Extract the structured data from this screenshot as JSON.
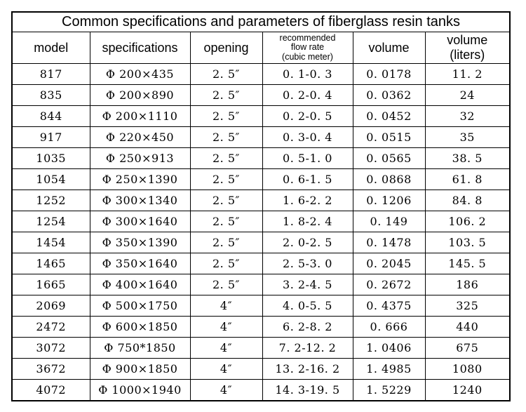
{
  "page": {
    "background_color": "#ffffff",
    "border_color": "#000000",
    "text_color": "#000000"
  },
  "table": {
    "title": "Common specifications and parameters of fiberglass resin tanks",
    "headers": [
      "model",
      "specifications",
      "opening",
      "recommended\nflow rate\n(cubic meter)",
      "volume",
      "volume\n(liters)"
    ],
    "rows": [
      [
        "817",
        "Φ 200×435",
        "2. 5″",
        "0. 1-0. 3",
        "0. 0178",
        "11. 2"
      ],
      [
        "835",
        "Φ 200×890",
        "2. 5″",
        "0. 2-0. 4",
        "0. 0362",
        "24"
      ],
      [
        "844",
        "Φ 200×1110",
        "2. 5″",
        "0. 2-0. 5",
        "0. 0452",
        "32"
      ],
      [
        "917",
        "Φ 220×450",
        "2. 5″",
        "0. 3-0. 4",
        "0. 0515",
        "35"
      ],
      [
        "1035",
        "Φ 250×913",
        "2. 5″",
        "0. 5-1. 0",
        "0. 0565",
        "38. 5"
      ],
      [
        "1054",
        "Φ 250×1390",
        "2. 5″",
        "0. 6-1. 5",
        "0. 0868",
        "61. 8"
      ],
      [
        "1252",
        "Φ 300×1340",
        "2. 5″",
        "1. 6-2. 2",
        "0. 1206",
        "84. 8"
      ],
      [
        "1254",
        "Φ 300×1640",
        "2. 5″",
        "1. 8-2. 4",
        "0. 149",
        "106. 2"
      ],
      [
        "1454",
        "Φ 350×1390",
        "2. 5″",
        "2. 0-2. 5",
        "0. 1478",
        "103. 5"
      ],
      [
        "1465",
        "Φ 350×1640",
        "2. 5″",
        "2. 5-3. 0",
        "0. 2045",
        "145. 5"
      ],
      [
        "1665",
        "Φ 400×1640",
        "2. 5″",
        "3. 2-4. 5",
        "0. 2672",
        "186"
      ],
      [
        "2069",
        "Φ 500×1750",
        "4″",
        "4. 0-5. 5",
        "0. 4375",
        "325"
      ],
      [
        "2472",
        "Φ 600×1850",
        "4″",
        "6. 2-8. 2",
        "0. 666",
        "440"
      ],
      [
        "3072",
        "Φ 750*1850",
        "4″",
        "7. 2-12. 2",
        "1. 0406",
        "675"
      ],
      [
        "3672",
        "Φ 900×1850",
        "4″",
        "13. 2-16. 2",
        "1. 4985",
        "1080"
      ],
      [
        "4072",
        "Φ 1000×1940",
        "4″",
        "14. 3-19. 5",
        "1. 5229",
        "1240"
      ]
    ]
  },
  "chart_data": {
    "type": "table",
    "title": "Common specifications and parameters of fiberglass resin tanks",
    "columns": [
      "model",
      "specifications",
      "opening",
      "recommended flow rate (cubic meter)",
      "volume",
      "volume (liters)"
    ],
    "rows": [
      [
        817,
        "Φ200×435",
        "2.5″",
        "0.1-0.3",
        0.0178,
        11.2
      ],
      [
        835,
        "Φ200×890",
        "2.5″",
        "0.2-0.4",
        0.0362,
        24
      ],
      [
        844,
        "Φ200×1110",
        "2.5″",
        "0.2-0.5",
        0.0452,
        32
      ],
      [
        917,
        "Φ220×450",
        "2.5″",
        "0.3-0.4",
        0.0515,
        35
      ],
      [
        1035,
        "Φ250×913",
        "2.5″",
        "0.5-1.0",
        0.0565,
        38.5
      ],
      [
        1054,
        "Φ250×1390",
        "2.5″",
        "0.6-1.5",
        0.0868,
        61.8
      ],
      [
        1252,
        "Φ300×1340",
        "2.5″",
        "1.6-2.2",
        0.1206,
        84.8
      ],
      [
        1254,
        "Φ300×1640",
        "2.5″",
        "1.8-2.4",
        0.149,
        106.2
      ],
      [
        1454,
        "Φ350×1390",
        "2.5″",
        "2.0-2.5",
        0.1478,
        103.5
      ],
      [
        1465,
        "Φ350×1640",
        "2.5″",
        "2.5-3.0",
        0.2045,
        145.5
      ],
      [
        1665,
        "Φ400×1640",
        "2.5″",
        "3.2-4.5",
        0.2672,
        186
      ],
      [
        2069,
        "Φ500×1750",
        "4″",
        "4.0-5.5",
        0.4375,
        325
      ],
      [
        2472,
        "Φ600×1850",
        "4″",
        "6.2-8.2",
        0.666,
        440
      ],
      [
        3072,
        "Φ750*1850",
        "4″",
        "7.2-12.2",
        1.0406,
        675
      ],
      [
        3672,
        "Φ900×1850",
        "4″",
        "13.2-16.2",
        1.4985,
        1080
      ],
      [
        4072,
        "Φ1000×1940",
        "4″",
        "14.3-19.5",
        1.5229,
        1240
      ]
    ]
  }
}
